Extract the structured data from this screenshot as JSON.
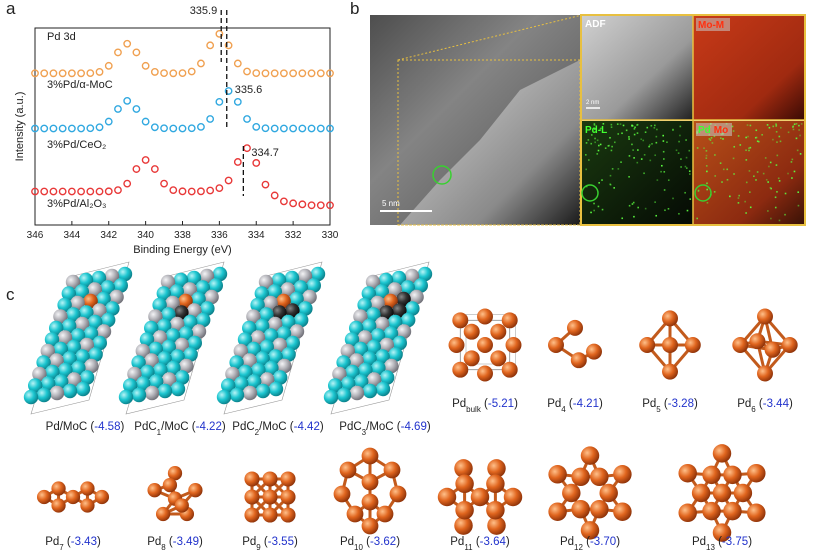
{
  "panel_labels": [
    "a",
    "b",
    "c"
  ],
  "chart_data": {
    "type": "scatter",
    "title": "Pd 3d",
    "xlabel": "Binding Energy (eV)",
    "ylabel": "Intensity (a.u.)",
    "x": [
      346,
      345.5,
      345,
      344.5,
      344,
      343.5,
      343,
      342.5,
      342,
      341.5,
      341,
      340.5,
      340,
      339.5,
      339,
      338.5,
      338,
      337.5,
      337,
      336.5,
      336,
      335.5,
      335,
      334.5,
      334,
      333.5,
      333,
      332.5,
      332,
      331.5,
      331,
      330.5,
      330
    ],
    "xlim": [
      346,
      330
    ],
    "xticks": [
      346,
      344,
      342,
      340,
      338,
      336,
      334,
      332,
      330
    ],
    "ylim": [
      0,
      100
    ],
    "series": [
      {
        "name": "3%Pd/α-MoC",
        "color": "#f0a050",
        "values": [
          77,
          77,
          77,
          77,
          77,
          77,
          77.1,
          77.7,
          80.8,
          87.6,
          92,
          87.6,
          80.8,
          77.7,
          77.1,
          77,
          77.1,
          77.9,
          82,
          91.2,
          97,
          91.2,
          82,
          77.9,
          77.1,
          77,
          77,
          77,
          77,
          77,
          77,
          77,
          77
        ]
      },
      {
        "name": "3%Pd/CeO₂",
        "color": "#30a8e0",
        "values": [
          49,
          49,
          49,
          49,
          49,
          49,
          49.1,
          49.6,
          52.5,
          58.9,
          63,
          58.9,
          52.5,
          49.6,
          49.1,
          49,
          49,
          49.1,
          49.8,
          53.8,
          62.5,
          68,
          62.5,
          53.8,
          49.8,
          49.1,
          49,
          49,
          49,
          49,
          49,
          49,
          49
        ]
      },
      {
        "name": "3%Pd/Al₂O₃",
        "color": "#e83838",
        "values": [
          17,
          17,
          17,
          17,
          17,
          17,
          17,
          17,
          17.1,
          17.7,
          21,
          28.4,
          33,
          28.4,
          21,
          17.7,
          17.1,
          17,
          17.1,
          17.5,
          18.7,
          22.6,
          32,
          39,
          31.5,
          20.5,
          15,
          12,
          11,
          10.5,
          10,
          10,
          10
        ]
      }
    ],
    "peaks": [
      335.9,
      335.6,
      334.7
    ]
  },
  "panel_b": {
    "tiles": [
      "ADF",
      "Mo-M",
      "Pd-L"
    ],
    "overlay": [
      "Pd",
      "Mo"
    ],
    "scale_bars": [
      "5 nm",
      "2 nm"
    ]
  },
  "panel_c": {
    "slabs": [
      [
        {
          "text": "Pd/MoC ("
        },
        {
          "text": "-4.58",
          "style": "energy"
        },
        {
          "text": ")"
        }
      ],
      [
        {
          "text": "PdC"
        },
        {
          "text": "1",
          "style": "sub"
        },
        {
          "text": "/MoC ("
        },
        {
          "text": "-4.22",
          "style": "energy"
        },
        {
          "text": ")"
        }
      ],
      [
        {
          "text": "PdC"
        },
        {
          "text": "2",
          "style": "sub"
        },
        {
          "text": "/MoC ("
        },
        {
          "text": "-4.42",
          "style": "energy"
        },
        {
          "text": ")"
        }
      ],
      [
        {
          "text": "PdC"
        },
        {
          "text": "3",
          "style": "sub"
        },
        {
          "text": "/MoC ("
        },
        {
          "text": "-4.69",
          "style": "energy"
        },
        {
          "text": ")"
        }
      ]
    ],
    "clusters": [
      [
        {
          "text": "Pd"
        },
        {
          "text": "bulk",
          "style": "sub"
        },
        {
          "text": " ("
        },
        {
          "text": "-5.21",
          "style": "energy"
        },
        {
          "text": ")"
        }
      ],
      [
        {
          "text": "Pd"
        },
        {
          "text": "4",
          "style": "sub"
        },
        {
          "text": " ("
        },
        {
          "text": "-4.21",
          "style": "energy"
        },
        {
          "text": ")"
        }
      ],
      [
        {
          "text": "Pd"
        },
        {
          "text": "5",
          "style": "sub"
        },
        {
          "text": " ("
        },
        {
          "text": "-3.28",
          "style": "energy"
        },
        {
          "text": ")"
        }
      ],
      [
        {
          "text": "Pd"
        },
        {
          "text": "6",
          "style": "sub"
        },
        {
          "text": " ("
        },
        {
          "text": "-3.44",
          "style": "energy"
        },
        {
          "text": ")"
        }
      ],
      [
        {
          "text": "Pd"
        },
        {
          "text": "7",
          "style": "sub"
        },
        {
          "text": " ("
        },
        {
          "text": "-3.43",
          "style": "energy"
        },
        {
          "text": ")"
        }
      ],
      [
        {
          "text": "Pd"
        },
        {
          "text": "8",
          "style": "sub"
        },
        {
          "text": " ("
        },
        {
          "text": "-3.49",
          "style": "energy"
        },
        {
          "text": ")"
        }
      ],
      [
        {
          "text": "Pd"
        },
        {
          "text": "9",
          "style": "sub"
        },
        {
          "text": " ("
        },
        {
          "text": "-3.55",
          "style": "energy"
        },
        {
          "text": ")"
        }
      ],
      [
        {
          "text": "Pd"
        },
        {
          "text": "10",
          "style": "sub"
        },
        {
          "text": " ("
        },
        {
          "text": "-3.62",
          "style": "energy"
        },
        {
          "text": ")"
        }
      ],
      [
        {
          "text": "Pd"
        },
        {
          "text": "11",
          "style": "sub"
        },
        {
          "text": " ("
        },
        {
          "text": "-3.64",
          "style": "energy"
        },
        {
          "text": ")"
        }
      ],
      [
        {
          "text": "Pd"
        },
        {
          "text": "12",
          "style": "sub"
        },
        {
          "text": " ("
        },
        {
          "text": "-3.70",
          "style": "energy"
        },
        {
          "text": ")"
        }
      ],
      [
        {
          "text": "Pd"
        },
        {
          "text": "13",
          "style": "sub"
        },
        {
          "text": " ("
        },
        {
          "text": "-3.75",
          "style": "energy"
        },
        {
          "text": ")"
        }
      ]
    ]
  }
}
